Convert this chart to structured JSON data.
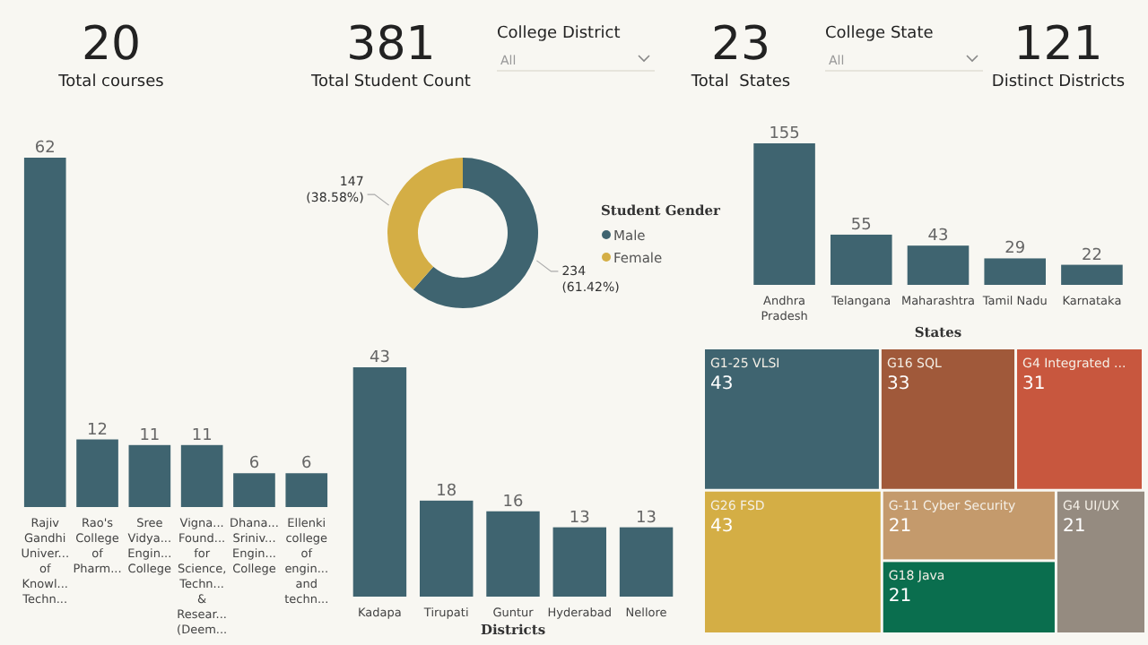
{
  "chart_data": [
    {
      "type": "other",
      "annotations": [
        "20",
        "Total courses",
        "381",
        "Total Student Count",
        "College District",
        "All",
        "23",
        "Total  States",
        "College State",
        "All",
        "121",
        "Distinct Districts"
      ]
    },
    {
      "type": "bar",
      "categories": [
        "Rajiv Gandhi Univer... of Knowl... Techn...",
        "Rao's College of Pharm...",
        "Sree Vidya... Engin... College",
        "Vigna... Found... for Science, Techn... & Resear... (Deem...",
        "Dhana... Sriniv... Engin... College",
        "Ellenki college of engin... and techn..."
      ],
      "values": [
        62,
        12,
        11,
        11,
        6,
        6
      ],
      "color": "#3f6470",
      "data_labels": true
    },
    {
      "type": "donut",
      "categories": [
        "Male",
        "Female"
      ],
      "values": [
        234,
        147
      ],
      "colors": [
        "#3f6470",
        "#d4ae45"
      ],
      "value_labels": [
        "234 (61.42%)",
        "147 (38.58%)"
      ],
      "legend_title": "Student Gender",
      "legend": "right"
    },
    {
      "type": "bar",
      "categories": [
        "Andhra Pradesh",
        "Telangana",
        "Maharashtra",
        "Tamil Nadu",
        "Karnataka"
      ],
      "values": [
        155,
        55,
        43,
        29,
        22
      ],
      "color": "#3f6470",
      "data_labels": true,
      "xlabel": "States"
    },
    {
      "type": "bar",
      "categories": [
        "Kadapa",
        "Tirupati",
        "Guntur",
        "Hyderabad",
        "Nellore"
      ],
      "values": [
        43,
        18,
        16,
        13,
        13
      ],
      "color": "#3f6470",
      "data_labels": true,
      "xlabel": "Districts"
    },
    {
      "type": "other",
      "categories": [
        "G1-25 VLSI",
        "G16 SQL",
        "G4 Integrated ...",
        "G26 FSD",
        "G-11 Cyber Security",
        "G18 Java",
        "G4 UI/UX"
      ],
      "values": [
        43,
        33,
        31,
        43,
        21,
        21,
        21
      ],
      "colors": [
        "#3f6470",
        "#a0593a",
        "#c8573e",
        "#d4ae45",
        "#c49a6c",
        "#0a6e4e",
        "#958b80"
      ],
      "data_labels": true
    }
  ]
}
